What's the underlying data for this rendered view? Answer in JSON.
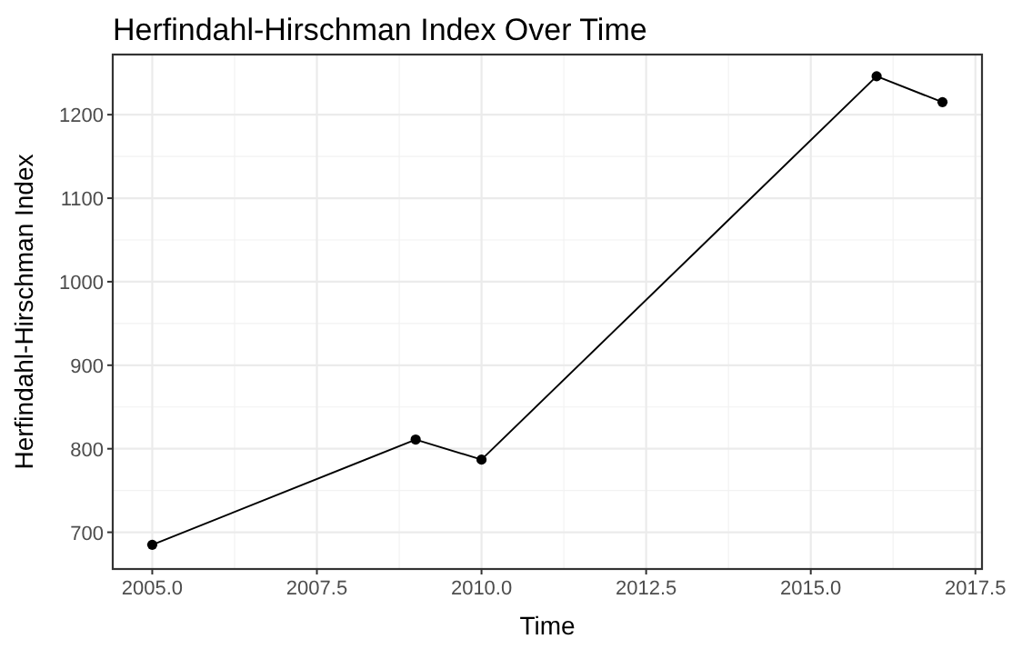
{
  "chart_data": {
    "type": "line",
    "title": "Herfindahl-Hirschman Index Over Time",
    "xlabel": "Time",
    "ylabel": "Herfindahl-Hirschman Index",
    "x": [
      2005,
      2009,
      2010,
      2016,
      2017
    ],
    "series": [
      {
        "color": "#000000",
        "values": [
          685,
          811,
          787,
          1246,
          1215
        ]
      }
    ],
    "xlim": [
      2004.4,
      2017.6
    ],
    "xticks": [
      {
        "value": 2005,
        "label": "2005.0"
      },
      {
        "value": 2007.5,
        "label": "2007.5"
      },
      {
        "value": 2010,
        "label": "2010.0"
      },
      {
        "value": 2012.5,
        "label": "2012.5"
      },
      {
        "value": 2015,
        "label": "2015.0"
      },
      {
        "value": 2017.5,
        "label": "2017.5"
      }
    ],
    "ylim": [
      656,
      1272
    ],
    "yticks": [
      700,
      800,
      900,
      1000,
      1100,
      1200
    ],
    "grid": true,
    "marker": "circle",
    "line_style": "solid"
  }
}
